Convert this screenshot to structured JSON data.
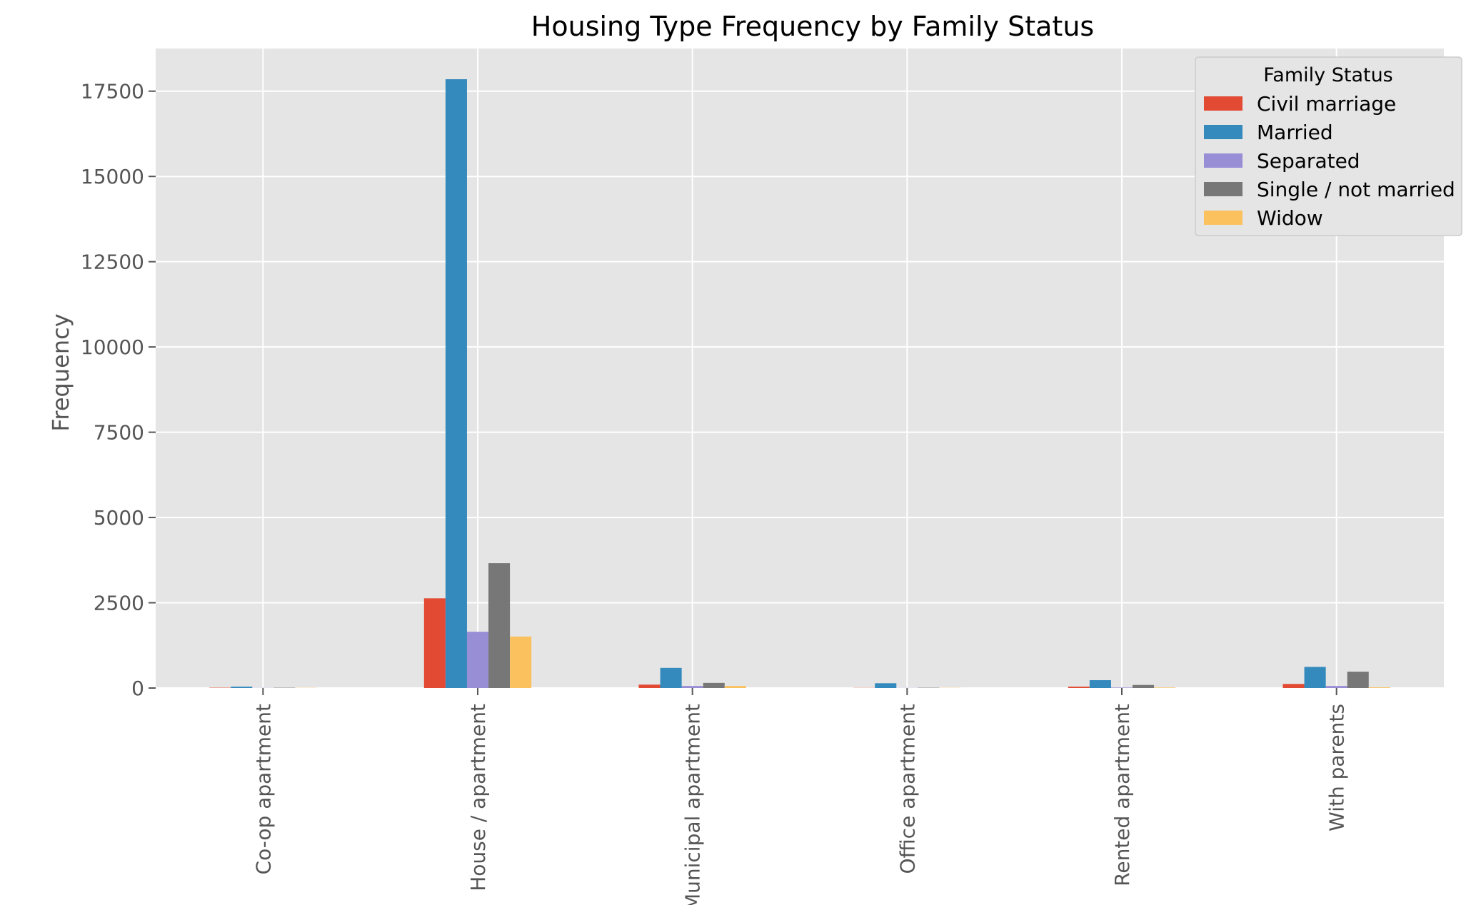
{
  "chart_data": {
    "type": "bar",
    "title": "Housing Type Frequency by Family Status",
    "xlabel": "",
    "ylabel": "Frequency",
    "ylim": [
      0,
      18750
    ],
    "yticks": [
      0,
      2500,
      5000,
      7500,
      10000,
      12500,
      15000,
      17500
    ],
    "grid": true,
    "legend_title": "Family Status",
    "legend_position": "top-right",
    "categories": [
      "Co-op apartment",
      "House / apartment",
      "Municipal apartment",
      "Office apartment",
      "Rented apartment",
      "With parents"
    ],
    "series": [
      {
        "name": "Civil marriage",
        "color": "#E24A33",
        "values": [
          10,
          2630,
          100,
          5,
          40,
          120
        ]
      },
      {
        "name": "Married",
        "color": "#348ABD",
        "values": [
          40,
          17850,
          590,
          140,
          230,
          620
        ]
      },
      {
        "name": "Separated",
        "color": "#988ED5",
        "values": [
          5,
          1650,
          60,
          5,
          15,
          60
        ]
      },
      {
        "name": "Single / not married",
        "color": "#777777",
        "values": [
          10,
          3660,
          150,
          10,
          90,
          480
        ]
      },
      {
        "name": "Widow",
        "color": "#FBC15E",
        "values": [
          5,
          1510,
          60,
          5,
          15,
          20
        ]
      }
    ]
  }
}
